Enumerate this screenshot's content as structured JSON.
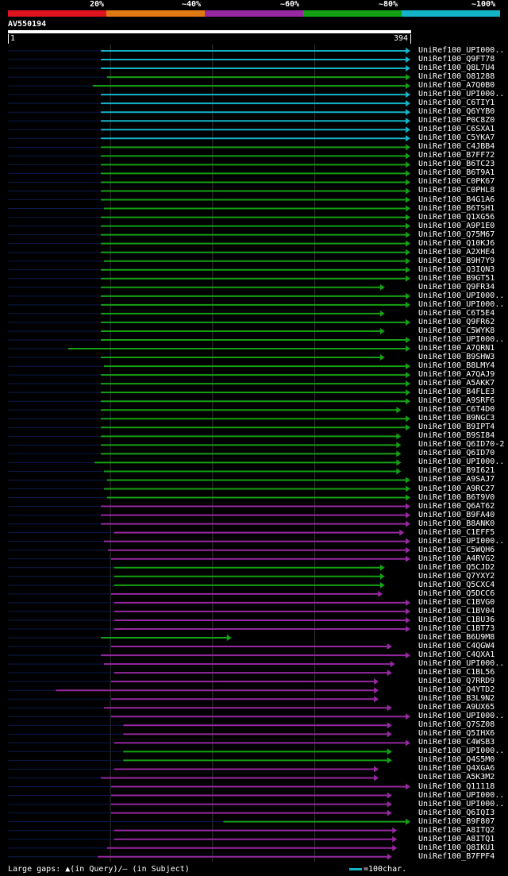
{
  "legend": {
    "labels": [
      "20%",
      "~40%",
      "~60%",
      "~80%",
      "~100%"
    ],
    "colors": [
      "#e0141e",
      "#e07814",
      "#9628a0",
      "#14a014",
      "#14b4c8"
    ]
  },
  "query": {
    "id": "AV550194",
    "start": "1",
    "end": "394",
    "length": 394
  },
  "hits": [
    {
      "label": "UniRef100_UPI000..",
      "s": 91,
      "e": 394,
      "c": 4,
      "a": 1
    },
    {
      "label": "UniRef100_Q9FT78",
      "s": 91,
      "e": 394,
      "c": 4,
      "a": 1
    },
    {
      "label": "UniRef100_Q8L7U4",
      "s": 91,
      "e": 394,
      "c": 4,
      "a": 1
    },
    {
      "label": "UniRef100_O81288",
      "s": 97,
      "e": 394,
      "c": 3,
      "a": 1
    },
    {
      "label": "UniRef100_A7Q0B0",
      "s": 83,
      "e": 394,
      "c": 3,
      "a": 1
    },
    {
      "label": "UniRef100_UPI000..",
      "s": 91,
      "e": 394,
      "c": 4,
      "a": 1
    },
    {
      "label": "UniRef100_C6TIY1",
      "s": 91,
      "e": 394,
      "c": 4,
      "a": 1
    },
    {
      "label": "UniRef100_Q6YYB0",
      "s": 91,
      "e": 394,
      "c": 4,
      "a": 1
    },
    {
      "label": "UniRef100_P0C8Z0",
      "s": 91,
      "e": 394,
      "c": 4,
      "a": 1
    },
    {
      "label": "UniRef100_C6SXA1",
      "s": 91,
      "e": 394,
      "c": 4,
      "a": 1
    },
    {
      "label": "UniRef100_C5YKA7",
      "s": 91,
      "e": 394,
      "c": 4,
      "a": 1
    },
    {
      "label": "UniRef100_C4JBB4",
      "s": 91,
      "e": 394,
      "c": 3,
      "a": 1
    },
    {
      "label": "UniRef100_B7FF72",
      "s": 91,
      "e": 394,
      "c": 3,
      "a": 1
    },
    {
      "label": "UniRef100_B6TC23",
      "s": 91,
      "e": 394,
      "c": 3,
      "a": 1
    },
    {
      "label": "UniRef100_B6T9A1",
      "s": 91,
      "e": 394,
      "c": 3,
      "a": 1
    },
    {
      "label": "UniRef100_C0PK67",
      "s": 91,
      "e": 394,
      "c": 3,
      "a": 1
    },
    {
      "label": "UniRef100_C0PHL8",
      "s": 91,
      "e": 394,
      "c": 3,
      "a": 1
    },
    {
      "label": "UniRef100_B4G1A6",
      "s": 91,
      "e": 394,
      "c": 3,
      "a": 1
    },
    {
      "label": "UniRef100_B6TSH1",
      "s": 94,
      "e": 394,
      "c": 3,
      "a": 1
    },
    {
      "label": "UniRef100_Q1XG56",
      "s": 91,
      "e": 394,
      "c": 3,
      "a": 1
    },
    {
      "label": "UniRef100_A9P1E0",
      "s": 91,
      "e": 394,
      "c": 3,
      "a": 1
    },
    {
      "label": "UniRef100_Q75M67",
      "s": 91,
      "e": 394,
      "c": 3,
      "a": 1
    },
    {
      "label": "UniRef100_Q10KJ6",
      "s": 91,
      "e": 394,
      "c": 3,
      "a": 1
    },
    {
      "label": "UniRef100_A2XHE4",
      "s": 91,
      "e": 394,
      "c": 3,
      "a": 1
    },
    {
      "label": "UniRef100_B9H7Y9",
      "s": 94,
      "e": 394,
      "c": 3,
      "a": 1
    },
    {
      "label": "UniRef100_Q3IQN3",
      "s": 91,
      "e": 394,
      "c": 3,
      "a": 1
    },
    {
      "label": "UniRef100_B9GT51",
      "s": 91,
      "e": 394,
      "c": 3,
      "a": 1
    },
    {
      "label": "UniRef100_Q9FR34",
      "s": 91,
      "e": 369,
      "c": 3,
      "a": 1
    },
    {
      "label": "UniRef100_UPI000..",
      "s": 91,
      "e": 394,
      "c": 3,
      "a": 1
    },
    {
      "label": "UniRef100_UPI000..",
      "s": 91,
      "e": 394,
      "c": 3,
      "a": 1
    },
    {
      "label": "UniRef100_C6T5E4",
      "s": 91,
      "e": 369,
      "c": 3,
      "a": 1
    },
    {
      "label": "UniRef100_Q9FR62",
      "s": 91,
      "e": 394,
      "c": 3,
      "a": 1
    },
    {
      "label": "UniRef100_C5WYK8",
      "s": 91,
      "e": 369,
      "c": 3,
      "a": 1
    },
    {
      "label": "UniRef100_UPI000..",
      "s": 91,
      "e": 394,
      "c": 3,
      "a": 1
    },
    {
      "label": "UniRef100_A7QRN1",
      "s": 59,
      "e": 394,
      "c": 3,
      "a": 1
    },
    {
      "label": "UniRef100_B9SHW3",
      "s": 91,
      "e": 369,
      "c": 3,
      "a": 1
    },
    {
      "label": "UniRef100_B8LMY4",
      "s": 94,
      "e": 394,
      "c": 3,
      "a": 1
    },
    {
      "label": "UniRef100_A7QAJ9",
      "s": 91,
      "e": 394,
      "c": 3,
      "a": 1
    },
    {
      "label": "UniRef100_A5AKK7",
      "s": 91,
      "e": 394,
      "c": 3,
      "a": 1
    },
    {
      "label": "UniRef100_B4FLE3",
      "s": 91,
      "e": 394,
      "c": 3,
      "a": 1
    },
    {
      "label": "UniRef100_A9SRF6",
      "s": 91,
      "e": 394,
      "c": 3,
      "a": 1
    },
    {
      "label": "UniRef100_C6T4D0",
      "s": 91,
      "e": 385,
      "c": 3,
      "a": 1
    },
    {
      "label": "UniRef100_B9NGC3",
      "s": 91,
      "e": 394,
      "c": 3,
      "a": 1
    },
    {
      "label": "UniRef100_B9IPT4",
      "s": 91,
      "e": 394,
      "c": 3,
      "a": 1
    },
    {
      "label": "UniRef100_B9SI84",
      "s": 91,
      "e": 385,
      "c": 3,
      "a": 1
    },
    {
      "label": "UniRef100_Q6ID70-2",
      "s": 91,
      "e": 385,
      "c": 3,
      "a": 1
    },
    {
      "label": "UniRef100_Q6ID70",
      "s": 91,
      "e": 385,
      "c": 3,
      "a": 1
    },
    {
      "label": "UniRef100_UPI000..",
      "s": 85,
      "e": 385,
      "c": 3,
      "a": 1
    },
    {
      "label": "UniRef100_B9I621",
      "s": 94,
      "e": 385,
      "c": 3,
      "a": 1
    },
    {
      "label": "UniRef100_A9SAJ7",
      "s": 97,
      "e": 394,
      "c": 3,
      "a": 1
    },
    {
      "label": "UniRef100_A9RC27",
      "s": 94,
      "e": 394,
      "c": 3,
      "a": 1
    },
    {
      "label": "UniRef100_B6T9V0",
      "s": 97,
      "e": 394,
      "c": 3,
      "a": 1
    },
    {
      "label": "UniRef100_Q6AT62",
      "s": 91,
      "e": 394,
      "c": 2,
      "a": 1
    },
    {
      "label": "UniRef100_B9FA40",
      "s": 91,
      "e": 394,
      "c": 2,
      "a": 1
    },
    {
      "label": "UniRef100_B8ANK0",
      "s": 91,
      "e": 394,
      "c": 2,
      "a": 1
    },
    {
      "label": "UniRef100_C1EFF5",
      "s": 104,
      "e": 388,
      "c": 2,
      "a": 1
    },
    {
      "label": "UniRef100_UPI000..",
      "s": 94,
      "e": 394,
      "c": 2,
      "a": 1
    },
    {
      "label": "UniRef100_C5WQH6",
      "s": 98,
      "e": 394,
      "c": 2,
      "a": 1
    },
    {
      "label": "UniRef100_A4RVG2",
      "s": 101,
      "e": 394,
      "c": 2,
      "a": 1
    },
    {
      "label": "UniRef100_Q5CJD2",
      "s": 104,
      "e": 369,
      "c": 3,
      "a": 1
    },
    {
      "label": "UniRef100_Q7YXY2",
      "s": 104,
      "e": 369,
      "c": 3,
      "a": 1
    },
    {
      "label": "UniRef100_Q5CXC4",
      "s": 104,
      "e": 369,
      "c": 3,
      "a": 1
    },
    {
      "label": "UniRef100_Q5DCC6",
      "s": 101,
      "e": 367,
      "c": 2,
      "a": 1
    },
    {
      "label": "UniRef100_C1BVG0",
      "s": 104,
      "e": 394,
      "c": 2,
      "a": 1
    },
    {
      "label": "UniRef100_C1BV04",
      "s": 104,
      "e": 394,
      "c": 2,
      "a": 1
    },
    {
      "label": "UniRef100_C1BU36",
      "s": 104,
      "e": 394,
      "c": 2,
      "a": 1
    },
    {
      "label": "UniRef100_C1BT73",
      "s": 104,
      "e": 394,
      "c": 2,
      "a": 1
    },
    {
      "label": "UniRef100_B6U9M8",
      "s": 91,
      "e": 219,
      "c": 3,
      "a": 1
    },
    {
      "label": "UniRef100_C4QGW4",
      "s": 101,
      "e": 376,
      "c": 2,
      "a": 1
    },
    {
      "label": "UniRef100_C4QXA1",
      "s": 91,
      "e": 394,
      "c": 2,
      "a": 1
    },
    {
      "label": "UniRef100_UPI000..",
      "s": 94,
      "e": 379,
      "c": 2,
      "a": 1
    },
    {
      "label": "UniRef100_C1BL56",
      "s": 104,
      "e": 376,
      "c": 2,
      "a": 1
    },
    {
      "label": "UniRef100_Q7RRD9",
      "s": 101,
      "e": 363,
      "c": 2,
      "a": 1
    },
    {
      "label": "UniRef100_Q4YTD2",
      "s": 47,
      "e": 363,
      "c": 2,
      "a": 1
    },
    {
      "label": "UniRef100_B3L9N2",
      "s": 101,
      "e": 363,
      "c": 2,
      "a": 1
    },
    {
      "label": "UniRef100_A9UX65",
      "s": 94,
      "e": 376,
      "c": 2,
      "a": 1
    },
    {
      "label": "UniRef100_UPI000..",
      "s": 101,
      "e": 394,
      "c": 2,
      "a": 1
    },
    {
      "label": "UniRef100_Q7SZ08",
      "s": 113,
      "e": 376,
      "c": 2,
      "a": 1
    },
    {
      "label": "UniRef100_Q5IHX6",
      "s": 113,
      "e": 376,
      "c": 2,
      "a": 1
    },
    {
      "label": "UniRef100_C4WSB3",
      "s": 104,
      "e": 394,
      "c": 2,
      "a": 1
    },
    {
      "label": "UniRef100_UPI000..",
      "s": 113,
      "e": 376,
      "c": 3,
      "a": 1
    },
    {
      "label": "UniRef100_Q4S5M0",
      "s": 113,
      "e": 376,
      "c": 3,
      "a": 1
    },
    {
      "label": "UniRef100_Q4XGA6",
      "s": 104,
      "e": 363,
      "c": 2,
      "a": 1
    },
    {
      "label": "UniRef100_A5K3M2",
      "s": 91,
      "e": 363,
      "c": 2,
      "a": 1
    },
    {
      "label": "UniRef100_Q11118",
      "s": 101,
      "e": 394,
      "c": 2,
      "a": 1
    },
    {
      "label": "UniRef100_UPI000..",
      "s": 101,
      "e": 376,
      "c": 2,
      "a": 1
    },
    {
      "label": "UniRef100_UPI000..",
      "s": 101,
      "e": 376,
      "c": 2,
      "a": 1
    },
    {
      "label": "UniRef100_Q6IQI3",
      "s": 101,
      "e": 376,
      "c": 2,
      "a": 1
    },
    {
      "label": "UniRef100_B9F807",
      "s": 211,
      "e": 394,
      "c": 3,
      "a": 1
    },
    {
      "label": "UniRef100_A8ITQ2",
      "s": 104,
      "e": 381,
      "c": 2,
      "a": 1
    },
    {
      "label": "UniRef100_A8ITQ1",
      "s": 104,
      "e": 381,
      "c": 2,
      "a": 1
    },
    {
      "label": "UniRef100_Q8IKU1",
      "s": 97,
      "e": 381,
      "c": 2,
      "a": 1
    },
    {
      "label": "UniRef100_B7FPF4",
      "s": 88,
      "e": 376,
      "c": 2,
      "a": 1
    }
  ],
  "footer": {
    "gaps": "Large gaps: ▲(in Query)/— (in Subject)",
    "scale": "=100char."
  }
}
